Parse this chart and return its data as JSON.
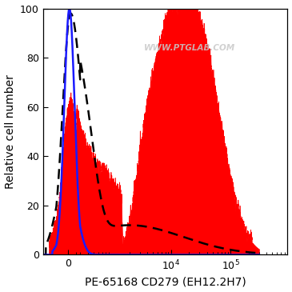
{
  "ylabel": "Relative cell number",
  "xlabel": "PE-65168 CD279 (EH12.2H7)",
  "watermark": "WWW.PTGLAB.COM",
  "ylim": [
    0,
    100
  ],
  "xlim_low": -500,
  "xlim_high": 300000,
  "linthresh": 300,
  "linscale": 0.18,
  "background_color": "#ffffff",
  "blue_line_color": "#1a1aff",
  "red_fill_color": "#ff0000",
  "dashed_line_color": "#000000",
  "axis_fontsize": 10,
  "tick_fontsize": 9
}
